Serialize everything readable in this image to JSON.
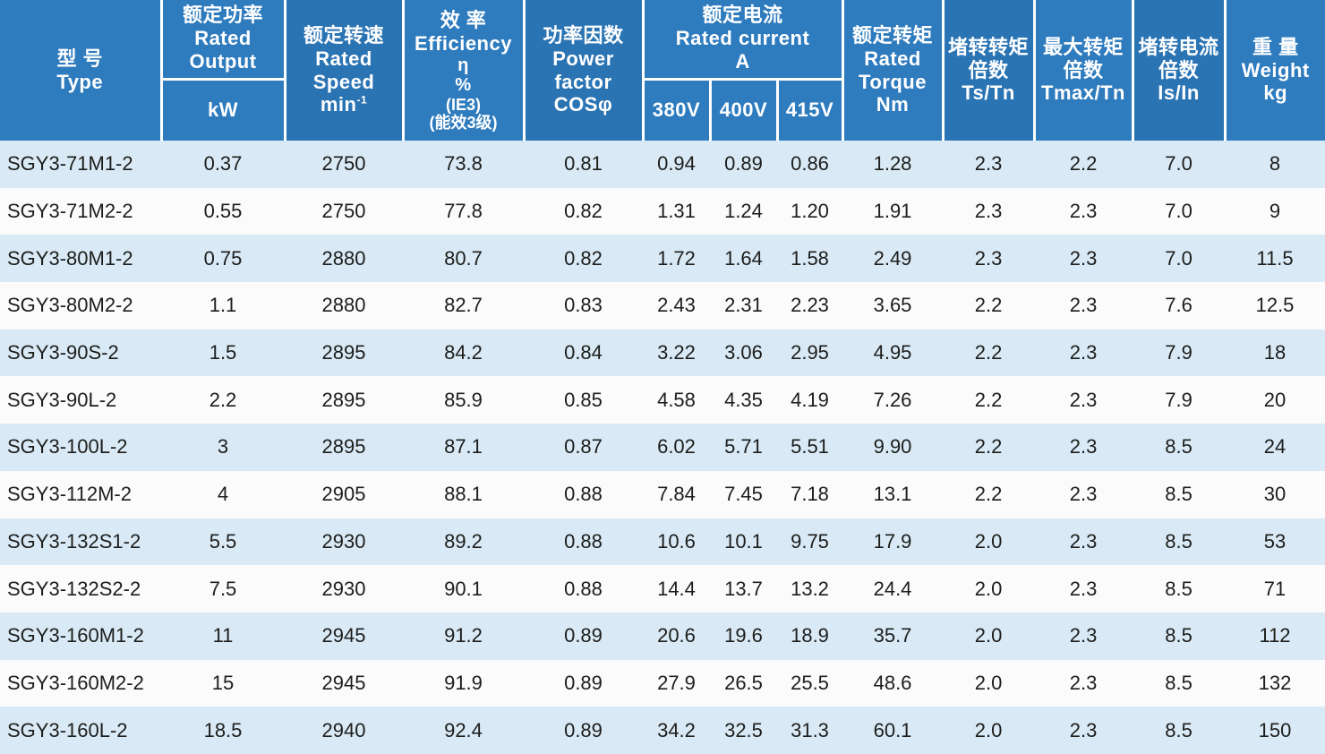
{
  "colors": {
    "header_blue": "#2e7bbe",
    "header_blue_alt": "#2b74b4",
    "stripe_blue": "#d9eaf6",
    "row_white": "#fbfbfb",
    "text_dark": "#1d1d1b"
  },
  "header": {
    "type": {
      "cn": "型 号",
      "en": "Type"
    },
    "output": {
      "cn": "额定功率",
      "en1": "Rated",
      "en2": "Output",
      "unit": "kW"
    },
    "speed": {
      "cn": "额定转速",
      "en1": "Rated",
      "en2": "Speed",
      "unit_base": "min",
      "unit_sup": "-1"
    },
    "efficiency": {
      "cn": "效 率",
      "en": "Efficiency",
      "sym": "η",
      "pct": "%",
      "ie": "(IE3)",
      "grade": "(能效3级)"
    },
    "pf": {
      "cn": "功率因数",
      "en1": "Power",
      "en2": "factor",
      "sym": "COSφ"
    },
    "current": {
      "cn": "额定电流",
      "en": "Rated  current",
      "unit": "A",
      "volts": [
        "380V",
        "400V",
        "415V"
      ]
    },
    "torque": {
      "cn": "额定转矩",
      "en1": "Rated",
      "en2": "Torque",
      "unit": "Nm"
    },
    "ts": {
      "cn1": "堵转转矩",
      "cn2": "倍数",
      "sym": "Ts/Tn"
    },
    "tmax": {
      "cn1": "最大转矩",
      "cn2": "倍数",
      "sym": "Tmax/Tn"
    },
    "is": {
      "cn1": "堵转电流",
      "cn2": "倍数",
      "sym": "Is/In"
    },
    "weight": {
      "cn": "重 量",
      "en": "Weight",
      "unit": "kg"
    }
  },
  "table": {
    "rows": [
      [
        "SGY3-71M1-2",
        "0.37",
        "2750",
        "73.8",
        "0.81",
        "0.94",
        "0.89",
        "0.86",
        "1.28",
        "2.3",
        "2.2",
        "7.0",
        "8"
      ],
      [
        "SGY3-71M2-2",
        "0.55",
        "2750",
        "77.8",
        "0.82",
        "1.31",
        "1.24",
        "1.20",
        "1.91",
        "2.3",
        "2.3",
        "7.0",
        "9"
      ],
      [
        "SGY3-80M1-2",
        "0.75",
        "2880",
        "80.7",
        "0.82",
        "1.72",
        "1.64",
        "1.58",
        "2.49",
        "2.3",
        "2.3",
        "7.0",
        "11.5"
      ],
      [
        "SGY3-80M2-2",
        "1.1",
        "2880",
        "82.7",
        "0.83",
        "2.43",
        "2.31",
        "2.23",
        "3.65",
        "2.2",
        "2.3",
        "7.6",
        "12.5"
      ],
      [
        "SGY3-90S-2",
        "1.5",
        "2895",
        "84.2",
        "0.84",
        "3.22",
        "3.06",
        "2.95",
        "4.95",
        "2.2",
        "2.3",
        "7.9",
        "18"
      ],
      [
        "SGY3-90L-2",
        "2.2",
        "2895",
        "85.9",
        "0.85",
        "4.58",
        "4.35",
        "4.19",
        "7.26",
        "2.2",
        "2.3",
        "7.9",
        "20"
      ],
      [
        "SGY3-100L-2",
        "3",
        "2895",
        "87.1",
        "0.87",
        "6.02",
        "5.71",
        "5.51",
        "9.90",
        "2.2",
        "2.3",
        "8.5",
        "24"
      ],
      [
        "SGY3-112M-2",
        "4",
        "2905",
        "88.1",
        "0.88",
        "7.84",
        "7.45",
        "7.18",
        "13.1",
        "2.2",
        "2.3",
        "8.5",
        "30"
      ],
      [
        "SGY3-132S1-2",
        "5.5",
        "2930",
        "89.2",
        "0.88",
        "10.6",
        "10.1",
        "9.75",
        "17.9",
        "2.0",
        "2.3",
        "8.5",
        "53"
      ],
      [
        "SGY3-132S2-2",
        "7.5",
        "2930",
        "90.1",
        "0.88",
        "14.4",
        "13.7",
        "13.2",
        "24.4",
        "2.0",
        "2.3",
        "8.5",
        "71"
      ],
      [
        "SGY3-160M1-2",
        "11",
        "2945",
        "91.2",
        "0.89",
        "20.6",
        "19.6",
        "18.9",
        "35.7",
        "2.0",
        "2.3",
        "8.5",
        "112"
      ],
      [
        "SGY3-160M2-2",
        "15",
        "2945",
        "91.9",
        "0.89",
        "27.9",
        "26.5",
        "25.5",
        "48.6",
        "2.0",
        "2.3",
        "8.5",
        "132"
      ],
      [
        "SGY3-160L-2",
        "18.5",
        "2940",
        "92.4",
        "0.89",
        "34.2",
        "32.5",
        "31.3",
        "60.1",
        "2.0",
        "2.3",
        "8.5",
        "150"
      ]
    ]
  }
}
